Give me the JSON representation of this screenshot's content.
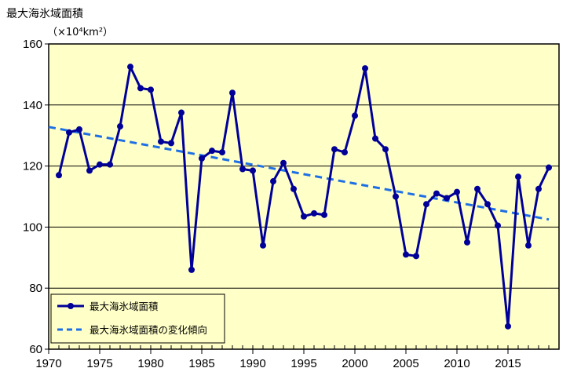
{
  "chart_data": {
    "type": "line",
    "ylabel": "最大海氷域面積",
    "ylabel_unit": "（×10⁴km²）",
    "ylim": [
      60,
      160
    ],
    "yticks": [
      "60",
      "80",
      "100",
      "120",
      "140",
      "160"
    ],
    "xlim": [
      1970,
      2020
    ],
    "xticks": [
      "1970",
      "1975",
      "1980",
      "1985",
      "1990",
      "1995",
      "2000",
      "2005",
      "2010",
      "2015"
    ],
    "grid": "horizontal",
    "legend_position": "bottom-left",
    "colors": {
      "plot_bg": "#FFFFC8",
      "series": "#000099",
      "trend": "#1E6FE6"
    },
    "series": [
      {
        "name": "最大海氷域面積",
        "style": "line-marker",
        "x": [
          1971,
          1972,
          1973,
          1974,
          1975,
          1976,
          1977,
          1978,
          1979,
          1980,
          1981,
          1982,
          1983,
          1984,
          1985,
          1986,
          1987,
          1988,
          1989,
          1990,
          1991,
          1992,
          1993,
          1994,
          1995,
          1996,
          1997,
          1998,
          1999,
          2000,
          2001,
          2002,
          2003,
          2004,
          2005,
          2006,
          2007,
          2008,
          2009,
          2010,
          2011,
          2012,
          2013,
          2014,
          2015,
          2016,
          2017,
          2018,
          2019
        ],
        "values": [
          117,
          131,
          132,
          118.5,
          120.5,
          120.5,
          133,
          152.5,
          145.5,
          145,
          128,
          127.5,
          137.5,
          86,
          122.5,
          125,
          124.5,
          144,
          119,
          118.5,
          94,
          115,
          121,
          112.5,
          103.5,
          104.5,
          104,
          125.5,
          124.5,
          136.5,
          152,
          129,
          125.5,
          110,
          91,
          90.5,
          107.5,
          111,
          109.5,
          111.5,
          95,
          112.5,
          107.5,
          100.5,
          67.5,
          116.5,
          94,
          112.5,
          119.5
        ]
      },
      {
        "name": "最大海氷域面積の変化傾向",
        "style": "dashed",
        "x": [
          1970,
          2019
        ],
        "values": [
          132.8,
          102.5
        ]
      }
    ]
  }
}
